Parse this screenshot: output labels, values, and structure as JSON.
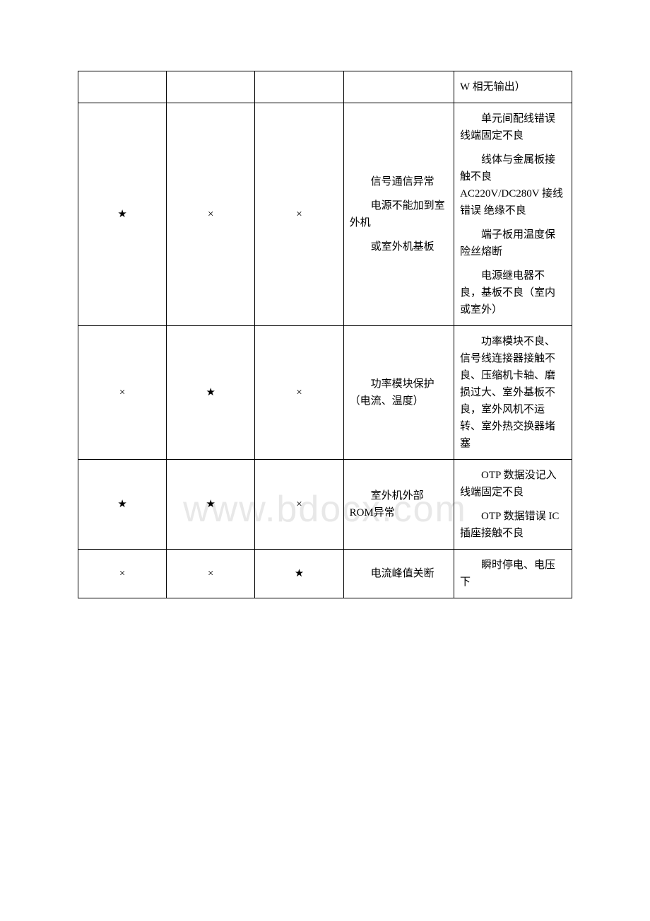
{
  "watermark": "www.bdocx.com",
  "symbols": {
    "star": "★",
    "cross": "×"
  },
  "columns": {
    "c1_width": 120,
    "c2_width": 120,
    "c3_width": 120,
    "c4_width": 150,
    "c5_width": 160
  },
  "colors": {
    "border": "#000000",
    "text": "#000000",
    "bg": "#ffffff",
    "watermark": "#e8e8e8"
  },
  "rows": [
    {
      "c1": "",
      "c2": "",
      "c3": "",
      "c4": "",
      "c5": [
        "W 相无输出）"
      ]
    },
    {
      "c1": "star",
      "c2": "cross",
      "c3": "cross",
      "c4": [
        "信号通信异常",
        "电源不能加到室外机",
        "或室外机基板"
      ],
      "c5": [
        "单元间配线错误 线端固定不良",
        "线体与金属板接触不良 AC220V/DC280V 接线错误 绝缘不良",
        "端子板用温度保险丝熔断",
        "电源继电器不良，基板不良（室内或室外）"
      ]
    },
    {
      "c1": "cross",
      "c2": "star",
      "c3": "cross",
      "c4": [
        "功率模块保护（电流、温度）"
      ],
      "c5": [
        "功率模块不良、信号线连接器接触不良、压缩机卡轴、磨损过大、室外基板不良，室外风机不运转、室外热交换器堵塞"
      ]
    },
    {
      "c1": "star",
      "c2": "star",
      "c3": "cross",
      "c4": [
        "室外机外部 ROM异常"
      ],
      "c5": [
        "OTP 数据没记入 线端固定不良",
        "OTP 数据错误 IC 插座接触不良"
      ]
    },
    {
      "c1": "cross",
      "c2": "cross",
      "c3": "star",
      "c4": [
        "电流峰值关断"
      ],
      "c5": [
        "瞬时停电、电压下"
      ]
    }
  ]
}
